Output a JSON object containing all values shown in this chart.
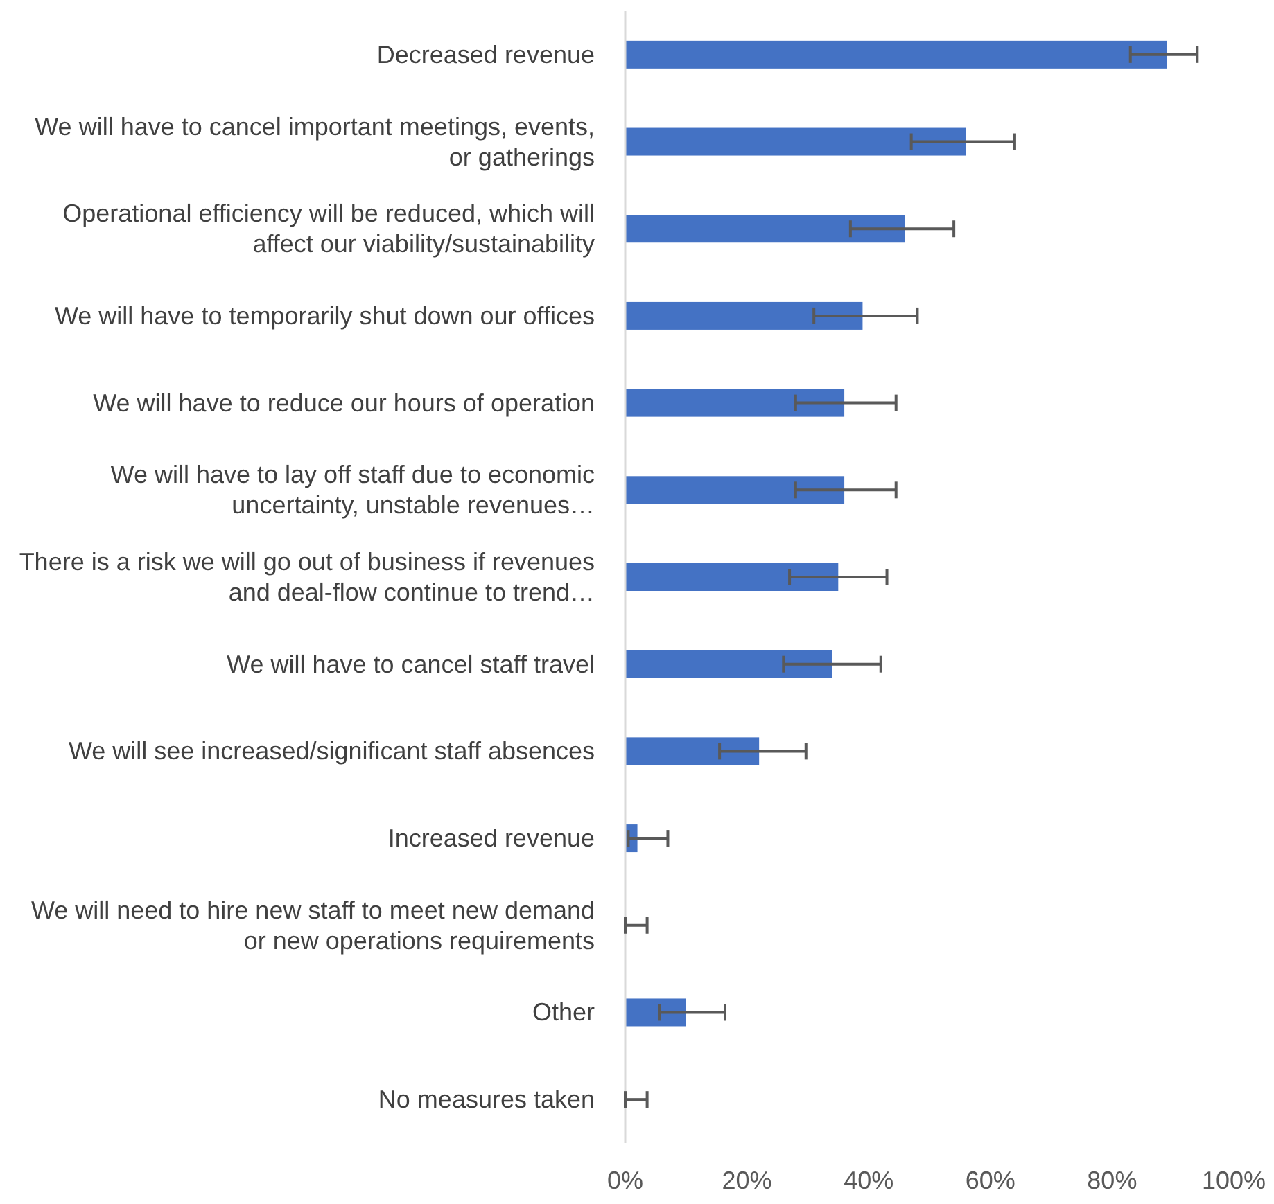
{
  "chart_data": {
    "type": "bar",
    "orientation": "horizontal",
    "categories": [
      "Decreased revenue",
      "We will have to cancel important meetings, events, or gatherings",
      "Operational efficiency will be reduced, which will affect our viability/sustainability",
      "We will have to temporarily shut down our offices",
      "We will have to reduce our hours of operation",
      "We will have to lay off staff due to economic uncertainty, unstable revenues…",
      "There is a risk we will go out of business if revenues and deal-flow continue to trend…",
      "We will have to cancel staff travel",
      "We will see increased/significant staff absences",
      "Increased revenue",
      "We will need to hire new staff to meet new demand or new operations requirements",
      "Other",
      "No measures taken"
    ],
    "values": [
      89,
      56,
      46,
      39,
      36,
      36,
      35,
      34,
      22,
      2,
      0,
      10,
      0
    ],
    "errors": [
      [
        83,
        94
      ],
      [
        47,
        64
      ],
      [
        37,
        54
      ],
      [
        31,
        48
      ],
      [
        28,
        44.5
      ],
      [
        28,
        44.5
      ],
      [
        27,
        43
      ],
      [
        26,
        42
      ],
      [
        15.5,
        29.7
      ],
      [
        0.5,
        7
      ],
      [
        0,
        3.6
      ],
      [
        5.6,
        16.4
      ],
      [
        0,
        3.6
      ]
    ],
    "color": "#4472c4",
    "xlim": [
      0,
      100
    ],
    "xticks": [
      {
        "value": 0,
        "label": "0%"
      },
      {
        "value": 20,
        "label": "20%"
      },
      {
        "value": 40,
        "label": "40%"
      },
      {
        "value": 60,
        "label": "60%"
      },
      {
        "value": 80,
        "label": "80%"
      },
      {
        "value": 100,
        "label": "100%"
      }
    ],
    "grid": false
  }
}
